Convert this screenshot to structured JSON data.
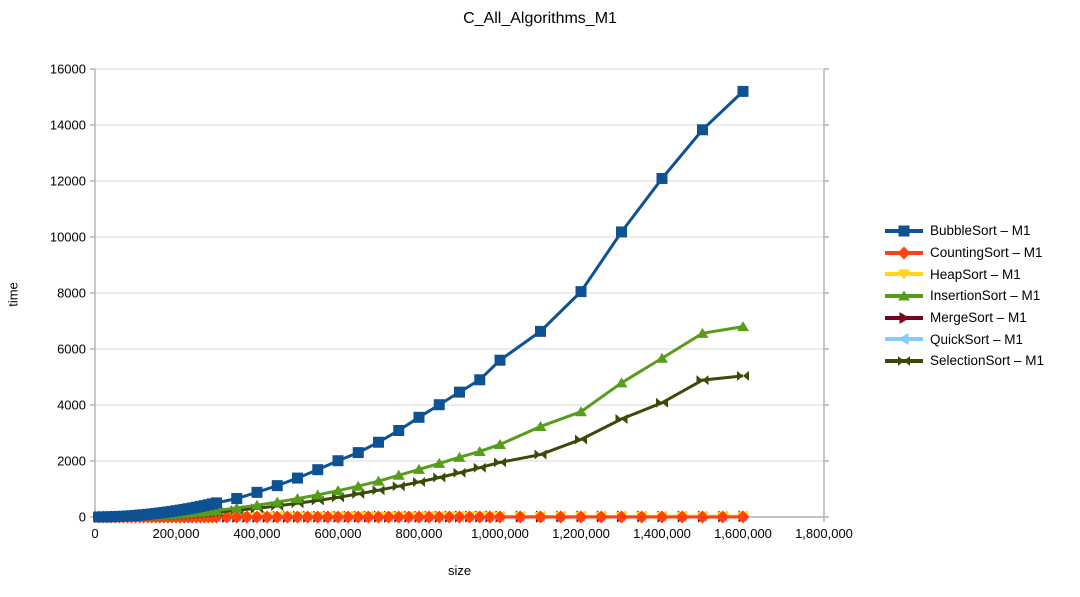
{
  "title": "C_All_Algorithms_M1",
  "chart_data": {
    "type": "line",
    "title": "C_All_Algorithms_M1",
    "xlabel": "size",
    "ylabel": "time",
    "xlim": [
      0,
      1800000
    ],
    "ylim": [
      0,
      16000
    ],
    "grid": "horizontal",
    "legend_position": "right",
    "x_tick_values": [
      0,
      200000,
      400000,
      600000,
      800000,
      1000000,
      1200000,
      1400000,
      1600000,
      1800000
    ],
    "x_tick_labels": [
      "0",
      "200,000",
      "400,000",
      "600,000",
      "800,000",
      "1,000,000",
      "1,200,000",
      "1,400,000",
      "1,600,000",
      "1,800,000"
    ],
    "y_tick_values": [
      0,
      2000,
      4000,
      6000,
      8000,
      10000,
      12000,
      14000,
      16000
    ],
    "y_tick_labels": [
      "0",
      "2000",
      "4000",
      "6000",
      "8000",
      "10000",
      "12000",
      "14000",
      "16000"
    ],
    "colors": {
      "grid": "#d9d9d9",
      "axis": "#b0b0b0",
      "text": "#000000"
    },
    "series": [
      {
        "name": "BubbleSort – M1",
        "color": "#0e5293",
        "marker": "square",
        "x": [
          10000,
          20000,
          30000,
          40000,
          50000,
          60000,
          70000,
          80000,
          90000,
          100000,
          110000,
          120000,
          130000,
          140000,
          150000,
          160000,
          170000,
          180000,
          190000,
          200000,
          210000,
          220000,
          230000,
          240000,
          250000,
          260000,
          270000,
          280000,
          290000,
          300000,
          350000,
          400000,
          450000,
          500000,
          550000,
          600000,
          650000,
          700000,
          750000,
          800000,
          850000,
          900000,
          950000,
          1000000,
          1100000,
          1200000,
          1300000,
          1400000,
          1500000,
          1600000
        ],
        "values": [
          1,
          2,
          5,
          9,
          14,
          20,
          27,
          36,
          45,
          56,
          68,
          81,
          95,
          110,
          126,
          143,
          162,
          182,
          202,
          224,
          247,
          271,
          296,
          322,
          350,
          378,
          408,
          439,
          471,
          504,
          660,
          880,
          1120,
          1390,
          1690,
          2010,
          2300,
          2670,
          3090,
          3560,
          4010,
          4460,
          4900,
          5600,
          6630,
          8050,
          10180,
          12090,
          13830,
          15200
        ]
      },
      {
        "name": "CountingSort – M1",
        "color": "#ff420e",
        "marker": "diamond",
        "x": [
          10000,
          20000,
          30000,
          40000,
          50000,
          60000,
          70000,
          80000,
          90000,
          100000,
          110000,
          120000,
          130000,
          140000,
          150000,
          160000,
          170000,
          180000,
          190000,
          200000,
          210000,
          220000,
          230000,
          240000,
          250000,
          260000,
          270000,
          280000,
          290000,
          300000,
          325000,
          350000,
          375000,
          400000,
          425000,
          450000,
          475000,
          500000,
          525000,
          550000,
          575000,
          600000,
          625000,
          650000,
          675000,
          700000,
          725000,
          750000,
          775000,
          800000,
          825000,
          850000,
          875000,
          900000,
          925000,
          950000,
          975000,
          1000000,
          1050000,
          1100000,
          1150000,
          1200000,
          1250000,
          1300000,
          1350000,
          1400000,
          1450000,
          1500000,
          1550000,
          1600000
        ],
        "values": [
          0,
          0,
          0,
          0,
          0,
          0,
          0,
          0,
          0,
          0,
          0,
          0,
          0,
          0,
          0,
          0,
          0,
          0,
          0,
          0,
          0,
          0,
          0,
          0,
          0,
          0,
          0,
          0,
          0,
          0,
          1,
          1,
          1,
          1,
          1,
          1,
          1,
          1,
          1,
          1,
          1,
          1,
          1,
          1,
          1,
          1,
          1,
          1,
          1,
          1,
          1,
          1,
          1,
          1,
          1,
          2,
          2,
          2,
          2,
          2,
          2,
          2,
          2,
          2,
          2,
          2,
          2,
          2,
          2,
          3
        ]
      },
      {
        "name": "HeapSort – M1",
        "color": "#ffd320",
        "marker": "arrow-down",
        "x": [
          10000,
          20000,
          30000,
          40000,
          50000,
          60000,
          70000,
          80000,
          90000,
          100000,
          110000,
          120000,
          130000,
          140000,
          150000,
          160000,
          170000,
          180000,
          190000,
          200000,
          210000,
          220000,
          230000,
          240000,
          250000,
          260000,
          270000,
          280000,
          290000,
          300000,
          325000,
          350000,
          375000,
          400000,
          425000,
          450000,
          475000,
          500000,
          525000,
          550000,
          575000,
          600000,
          625000,
          650000,
          675000,
          700000,
          725000,
          750000,
          775000,
          800000,
          825000,
          850000,
          875000,
          900000,
          925000,
          950000,
          975000,
          1000000,
          1050000,
          1100000,
          1150000,
          1200000,
          1250000,
          1300000,
          1350000,
          1400000,
          1450000,
          1500000,
          1550000,
          1600000
        ],
        "values": [
          0,
          0,
          1,
          1,
          1,
          1,
          1,
          1,
          2,
          2,
          2,
          2,
          2,
          3,
          3,
          3,
          3,
          3,
          3,
          4,
          4,
          4,
          4,
          4,
          5,
          5,
          5,
          5,
          5,
          5,
          6,
          6,
          7,
          7,
          8,
          8,
          9,
          9,
          9,
          10,
          10,
          11,
          11,
          12,
          12,
          13,
          13,
          14,
          14,
          14,
          15,
          15,
          16,
          16,
          17,
          17,
          18,
          18,
          19,
          20,
          21,
          22,
          23,
          23,
          24,
          25,
          26,
          27,
          28,
          29
        ]
      },
      {
        "name": "InsertionSort – M1",
        "color": "#579d1c",
        "marker": "arrow-up",
        "x": [
          10000,
          20000,
          30000,
          40000,
          50000,
          60000,
          70000,
          80000,
          90000,
          100000,
          110000,
          120000,
          130000,
          140000,
          150000,
          160000,
          170000,
          180000,
          190000,
          200000,
          210000,
          220000,
          230000,
          240000,
          250000,
          260000,
          270000,
          280000,
          290000,
          300000,
          350000,
          400000,
          450000,
          500000,
          550000,
          600000,
          650000,
          700000,
          750000,
          800000,
          850000,
          900000,
          950000,
          1000000,
          1100000,
          1200000,
          1300000,
          1400000,
          1500000,
          1600000
        ],
        "values": [
          0,
          1,
          2,
          4,
          7,
          9,
          13,
          17,
          21,
          26,
          31,
          37,
          44,
          51,
          59,
          67,
          75,
          84,
          94,
          104,
          115,
          126,
          138,
          150,
          163,
          176,
          190,
          204,
          219,
          234,
          320,
          420,
          530,
          655,
          790,
          940,
          1100,
          1280,
          1490,
          1700,
          1915,
          2130,
          2340,
          2590,
          3230,
          3760,
          4790,
          5670,
          6560,
          6800
        ]
      },
      {
        "name": "MergeSort – M1",
        "color": "#7e0021",
        "marker": "arrow-right",
        "x": [
          10000,
          20000,
          30000,
          40000,
          50000,
          60000,
          70000,
          80000,
          90000,
          100000,
          110000,
          120000,
          130000,
          140000,
          150000,
          160000,
          170000,
          180000,
          190000,
          200000,
          210000,
          220000,
          230000,
          240000,
          250000,
          260000,
          270000,
          280000,
          290000,
          300000,
          325000,
          350000,
          375000,
          400000,
          425000,
          450000,
          475000,
          500000,
          525000,
          550000,
          575000,
          600000,
          625000,
          650000,
          675000,
          700000,
          725000,
          750000,
          775000,
          800000,
          825000,
          850000,
          875000,
          900000,
          925000,
          950000,
          975000,
          1000000,
          1050000,
          1100000,
          1150000,
          1200000,
          1250000,
          1300000,
          1350000,
          1400000,
          1450000,
          1500000,
          1550000,
          1600000
        ],
        "values": [
          0,
          0,
          0,
          1,
          1,
          1,
          1,
          1,
          1,
          1,
          1,
          2,
          2,
          2,
          2,
          2,
          2,
          2,
          2,
          3,
          3,
          3,
          3,
          3,
          3,
          3,
          4,
          4,
          4,
          4,
          4,
          5,
          5,
          5,
          6,
          6,
          6,
          7,
          7,
          7,
          7,
          8,
          8,
          8,
          9,
          9,
          9,
          10,
          10,
          10,
          11,
          11,
          11,
          12,
          12,
          12,
          13,
          13,
          14,
          14,
          15,
          16,
          16,
          17,
          18,
          18,
          19,
          20,
          20,
          21
        ]
      },
      {
        "name": "QuickSort – M1",
        "color": "#83caff",
        "marker": "arrow-left",
        "x": [
          10000,
          20000,
          30000,
          40000,
          50000,
          60000,
          70000,
          80000,
          90000,
          100000,
          110000,
          120000,
          130000,
          140000,
          150000,
          160000,
          170000,
          180000,
          190000,
          200000,
          210000,
          220000,
          230000,
          240000,
          250000,
          260000,
          270000,
          280000,
          290000,
          300000,
          325000,
          350000,
          375000,
          400000,
          425000,
          450000,
          475000,
          500000,
          525000,
          550000,
          575000,
          600000,
          625000,
          650000,
          675000,
          700000,
          725000,
          750000,
          775000,
          800000,
          825000,
          850000,
          875000,
          900000,
          925000,
          950000,
          975000,
          1000000,
          1050000,
          1100000,
          1150000,
          1200000,
          1250000,
          1300000,
          1350000,
          1400000,
          1450000,
          1500000,
          1550000,
          1600000
        ],
        "values": [
          0,
          0,
          0,
          0,
          1,
          1,
          1,
          1,
          1,
          1,
          1,
          1,
          1,
          1,
          2,
          2,
          2,
          2,
          2,
          2,
          2,
          2,
          2,
          2,
          3,
          3,
          3,
          3,
          3,
          3,
          3,
          4,
          4,
          4,
          4,
          5,
          5,
          5,
          5,
          6,
          6,
          6,
          6,
          7,
          7,
          7,
          7,
          8,
          8,
          8,
          8,
          9,
          9,
          9,
          9,
          10,
          10,
          10,
          11,
          11,
          12,
          12,
          13,
          13,
          14,
          14,
          15,
          15,
          16,
          16
        ]
      },
      {
        "name": "SelectionSort – M1",
        "color": "#3b4a06",
        "marker": "bowtie",
        "x": [
          10000,
          20000,
          30000,
          40000,
          50000,
          60000,
          70000,
          80000,
          90000,
          100000,
          110000,
          120000,
          130000,
          140000,
          150000,
          160000,
          170000,
          180000,
          190000,
          200000,
          210000,
          220000,
          230000,
          240000,
          250000,
          260000,
          270000,
          280000,
          290000,
          300000,
          350000,
          400000,
          450000,
          500000,
          550000,
          600000,
          650000,
          700000,
          750000,
          800000,
          850000,
          900000,
          950000,
          1000000,
          1100000,
          1200000,
          1300000,
          1400000,
          1500000,
          1600000
        ],
        "values": [
          0,
          1,
          2,
          3,
          5,
          7,
          10,
          12,
          16,
          20,
          24,
          28,
          33,
          38,
          44,
          50,
          56,
          63,
          70,
          78,
          86,
          94,
          103,
          112,
          122,
          132,
          142,
          153,
          164,
          176,
          240,
          310,
          395,
          490,
          590,
          700,
          825,
          955,
          1100,
          1250,
          1410,
          1580,
          1760,
          1950,
          2230,
          2770,
          3500,
          4080,
          4890,
          5040
        ]
      }
    ]
  }
}
